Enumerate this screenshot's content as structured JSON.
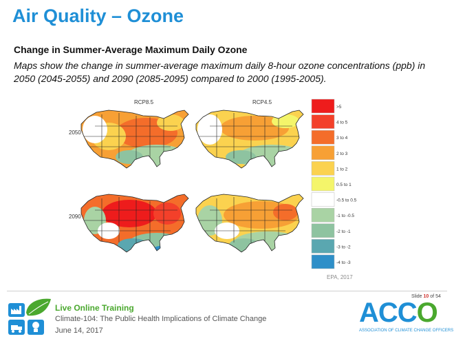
{
  "header": {
    "title": "Air Quality – Ozone",
    "subtitle": "Change in Summer-Average Maximum Daily Ozone",
    "description": "Maps show the change in summer-average maximum daily 8-hour ozone concentrations (ppb) in 2050 (2045-2055) and 2090 (2085-2095) compared to 2000 (1995-2005)."
  },
  "figure": {
    "columns": [
      "RCP8.5",
      "RCP4.5"
    ],
    "rows": [
      "2050",
      "2090"
    ],
    "legend": [
      {
        "label": ">5",
        "color": "#ee1c1c"
      },
      {
        "label": "4 to 5",
        "color": "#f3402a"
      },
      {
        "label": "3 to 4",
        "color": "#f46d2a"
      },
      {
        "label": "2 to 3",
        "color": "#f7a035"
      },
      {
        "label": "1 to 2",
        "color": "#fbd24f"
      },
      {
        "label": "0.5 to 1",
        "color": "#f4f56a"
      },
      {
        "label": "-0.5 to 0.5",
        "color": "#ffffff"
      },
      {
        "label": "-1 to -0.5",
        "color": "#a9d3a4"
      },
      {
        "label": "-2 to -1",
        "color": "#8ec3a0"
      },
      {
        "label": "-3 to -2",
        "color": "#5aa7b0"
      },
      {
        "label": "-4 to -3",
        "color": "#2e8fc8"
      }
    ],
    "source": "EPA, 2017"
  },
  "footer": {
    "slide_label": "Slide",
    "slide_current": "10",
    "slide_of": "of",
    "slide_total": "54",
    "line1": "Live Online Training",
    "line2": "Climate-104: The Public Health Implications of Climate Change",
    "line3": "June 14, 2017",
    "logo_text_a": "A",
    "logo_text_b": "CC",
    "logo_text_c": "O",
    "logo_sub": "ASSOCIATION OF CLIMATE CHANGE OFFICERS"
  }
}
